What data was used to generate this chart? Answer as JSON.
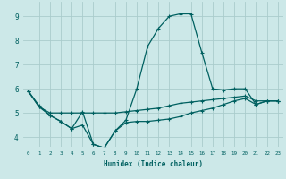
{
  "xlabel": "Humidex (Indice chaleur)",
  "bg_color": "#cce8e8",
  "grid_color": "#aacccc",
  "line_color": "#006060",
  "x_ticks": [
    0,
    1,
    2,
    3,
    4,
    5,
    6,
    7,
    8,
    9,
    10,
    11,
    12,
    13,
    14,
    15,
    16,
    17,
    18,
    19,
    20,
    21,
    22,
    23
  ],
  "y_ticks": [
    4,
    5,
    6,
    7,
    8,
    9
  ],
  "xlim": [
    -0.5,
    23.5
  ],
  "ylim": [
    3.6,
    9.6
  ],
  "series": {
    "top": [
      5.9,
      5.3,
      4.9,
      4.65,
      4.35,
      5.05,
      3.7,
      3.55,
      4.25,
      4.7,
      6.0,
      7.75,
      8.5,
      9.0,
      9.1,
      9.1,
      7.5,
      6.0,
      5.95,
      6.0,
      6.0,
      5.35,
      5.5,
      5.5
    ],
    "mid": [
      5.9,
      5.25,
      5.0,
      5.0,
      5.0,
      5.0,
      5.0,
      5.0,
      5.0,
      5.05,
      5.1,
      5.15,
      5.2,
      5.3,
      5.4,
      5.45,
      5.5,
      5.55,
      5.6,
      5.65,
      5.7,
      5.5,
      5.5,
      5.5
    ],
    "bot": [
      5.9,
      5.25,
      4.9,
      4.65,
      4.35,
      4.5,
      3.7,
      3.55,
      4.25,
      4.6,
      4.65,
      4.65,
      4.7,
      4.75,
      4.85,
      5.0,
      5.1,
      5.2,
      5.35,
      5.5,
      5.6,
      5.35,
      5.5,
      5.5
    ]
  }
}
